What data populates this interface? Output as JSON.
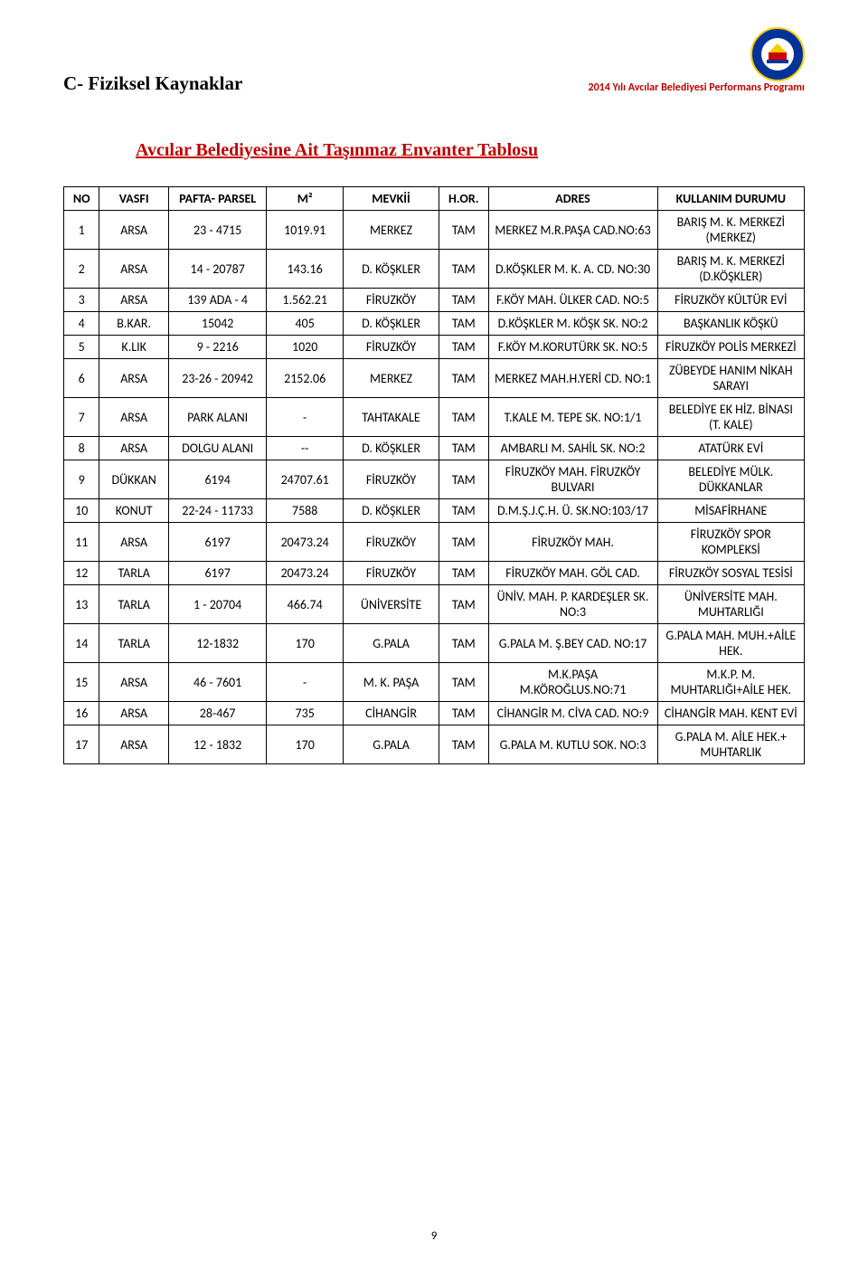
{
  "header": {
    "program_text": "2014 Yılı Avcılar Belediyesi Performans Programı",
    "logo_colors": {
      "primary": "#003399",
      "secondary": "#ffcc00",
      "accent": "#cc0000",
      "white": "#ffffff"
    }
  },
  "section_title": "C-  Fiziksel Kaynaklar",
  "subtitle": "Avcılar Belediyesine Ait Taşınmaz Envanter Tablosu",
  "table": {
    "type": "table",
    "columns": [
      "NO",
      "VASFI",
      "PAFTA- PARSEL",
      "M²",
      "MEVKİİ",
      "H.OR.",
      "ADRES",
      "KULLANIM DURUMU"
    ],
    "rows": [
      {
        "no": "1",
        "vasfi": "ARSA",
        "pafta": "23 - 4715",
        "m2": "1019.91",
        "mevkii": "MERKEZ",
        "hor": "TAM",
        "adres": "MERKEZ M.R.PAŞA CAD.NO:63",
        "durum": "BARIŞ M. K. MERKEZİ (MERKEZ)"
      },
      {
        "no": "2",
        "vasfi": "ARSA",
        "pafta": "14 - 20787",
        "m2": "143.16",
        "mevkii": "D. KÖŞKLER",
        "hor": "TAM",
        "adres": "D.KÖŞKLER M. K. A. CD. NO:30",
        "durum": "BARIŞ M. K. MERKEZİ (D.KÖŞKLER)"
      },
      {
        "no": "3",
        "vasfi": "ARSA",
        "pafta": "139 ADA - 4",
        "m2": "1.562.21",
        "mevkii": "FİRUZKÖY",
        "hor": "TAM",
        "adres": "F.KÖY MAH. ÜLKER CAD. NO:5",
        "durum": "FİRUZKÖY KÜLTÜR EVİ"
      },
      {
        "no": "4",
        "vasfi": "B.KAR.",
        "pafta": "15042",
        "m2": "405",
        "mevkii": "D. KÖŞKLER",
        "hor": "TAM",
        "adres": "D.KÖŞKLER M. KÖŞK SK. NO:2",
        "durum": "BAŞKANLIK KÖŞKÜ"
      },
      {
        "no": "5",
        "vasfi": "K.LIK",
        "pafta": "9 - 2216",
        "m2": "1020",
        "mevkii": "FİRUZKÖY",
        "hor": "TAM",
        "adres": "F.KÖY M.KORUTÜRK SK. NO:5",
        "durum": "FİRUZKÖY POLİS MERKEZİ"
      },
      {
        "no": "6",
        "vasfi": "ARSA",
        "pafta": "23-26  - 20942",
        "m2": "2152.06",
        "mevkii": "MERKEZ",
        "hor": "TAM",
        "adres": "MERKEZ MAH.H.YERİ CD. NO:1",
        "durum": "ZÜBEYDE HANIM NİKAH SARAYI"
      },
      {
        "no": "7",
        "vasfi": "ARSA",
        "pafta": "PARK ALANI",
        "m2": "-",
        "mevkii": "TAHTAKALE",
        "hor": "TAM",
        "adres": "T.KALE M. TEPE  SK. NO:1/1",
        "durum": "BELEDİYE EK HİZ. BİNASI (T. KALE)"
      },
      {
        "no": "8",
        "vasfi": "ARSA",
        "pafta": "DOLGU ALANI",
        "m2": "--",
        "mevkii": "D. KÖŞKLER",
        "hor": "TAM",
        "adres": "AMBARLI M. SAHİL SK. NO:2",
        "durum": "ATATÜRK EVİ"
      },
      {
        "no": "9",
        "vasfi": "DÜKKAN",
        "pafta": "6194",
        "m2": "24707.61",
        "mevkii": "FİRUZKÖY",
        "hor": "TAM",
        "adres": "FİRUZKÖY MAH. FİRUZKÖY BULVARI",
        "durum": "BELEDİYE MÜLK. DÜKKANLAR"
      },
      {
        "no": "10",
        "vasfi": "KONUT",
        "pafta": "22-24 - 11733",
        "m2": "7588",
        "mevkii": "D. KÖŞKLER",
        "hor": "TAM",
        "adres": "D.M.Ş.J.Ç.H. Ü. SK.NO:103/17",
        "durum": "MİSAFİRHANE"
      },
      {
        "no": "11",
        "vasfi": "ARSA",
        "pafta": "6197",
        "m2": "20473.24",
        "mevkii": "FİRUZKÖY",
        "hor": "TAM",
        "adres": "FİRUZKÖY MAH.",
        "durum": "FİRUZKÖY SPOR KOMPLEKSİ"
      },
      {
        "no": "12",
        "vasfi": "TARLA",
        "pafta": "6197",
        "m2": "20473.24",
        "mevkii": "FİRUZKÖY",
        "hor": "TAM",
        "adres": "FİRUZKÖY MAH. GÖL CAD.",
        "durum": "FİRUZKÖY SOSYAL TESİSİ"
      },
      {
        "no": "13",
        "vasfi": "TARLA",
        "pafta": "1 -  20704",
        "m2": "466.74",
        "mevkii": "ÜNİVERSİTE",
        "hor": "TAM",
        "adres": "ÜNİV. MAH. P. KARDEŞLER SK. NO:3",
        "durum": "ÜNİVERSİTE MAH. MUHTARLIĞI"
      },
      {
        "no": "14",
        "vasfi": "TARLA",
        "pafta": "12-1832",
        "m2": "170",
        "mevkii": "G.PALA",
        "hor": "TAM",
        "adres": "G.PALA M. Ş.BEY CAD. NO:17",
        "durum": "G.PALA MAH. MUH.+AİLE HEK."
      },
      {
        "no": "15",
        "vasfi": "ARSA",
        "pafta": "46 - 7601",
        "m2": "-",
        "mevkii": "M. K. PAŞA",
        "hor": "TAM",
        "adres": "M.K.PAŞA M.KÖROĞLUS.NO:71",
        "durum": "M.K.P. M. MUHTARLIĞI+AİLE HEK."
      },
      {
        "no": "16",
        "vasfi": "ARSA",
        "pafta": "28-467",
        "m2": "735",
        "mevkii": "CİHANGİR",
        "hor": "TAM",
        "adres": "CİHANGİR M. CİVA CAD. NO:9",
        "durum": "CİHANGİR MAH. KENT EVİ"
      },
      {
        "no": "17",
        "vasfi": "ARSA",
        "pafta": "12 - 1832",
        "m2": "170",
        "mevkii": "G.PALA",
        "hor": "TAM",
        "adres": "G.PALA M. KUTLU SOK. NO:3",
        "durum": "G.PALA M. AİLE HEK.+ MUHTARLIK"
      }
    ],
    "header_fontsize": 14,
    "cell_fontsize": 14,
    "border_color": "#000000",
    "background_color": "#ffffff"
  },
  "page_number": "9",
  "colors": {
    "heading_red": "#c00000",
    "text_black": "#000000",
    "page_bg": "#ffffff"
  },
  "fontsizes": {
    "section_title": 21,
    "subtitle": 20,
    "header_text": 12,
    "table": 14,
    "page_num": 13
  }
}
